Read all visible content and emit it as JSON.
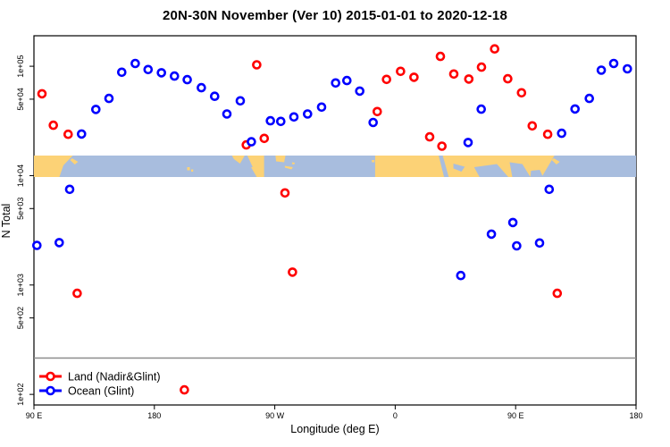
{
  "title": "20N-30N November (Ver 10)   2015-01-01 to 2020-12-18",
  "legend": {
    "items": [
      {
        "label": "Land (Nadir&Glint)",
        "color": "#ff0000"
      },
      {
        "label": "Ocean (Glint)",
        "color": "#0000ff"
      }
    ]
  },
  "map_band": {
    "ocean_color": "#a8bdde",
    "land_color": "#fcd276"
  },
  "chart_data": {
    "type": "scatter",
    "title": "20N-30N November (Ver 10)   2015-01-01 to 2020-12-18",
    "xlabel": "Longitude (deg E)",
    "ylabel": "N Total",
    "grid": false,
    "legend_position": "bottom-left",
    "x_axis": {
      "min": 90,
      "max": 540,
      "note": "longitude axis starts at 90E and wraps eastward around the globe (unwrapped degrees)",
      "ticks": [
        {
          "pos": 90,
          "label": "90 E"
        },
        {
          "pos": 180,
          "label": "180"
        },
        {
          "pos": 270,
          "label": "90 W"
        },
        {
          "pos": 360,
          "label": "0"
        },
        {
          "pos": 450,
          "label": "90 E"
        },
        {
          "pos": 540,
          "label": "180"
        }
      ]
    },
    "y_axis": {
      "scale": "log",
      "top_value": 190000,
      "bottom_value": 80,
      "ticks": [
        {
          "value": 100000,
          "label": "1e+05"
        },
        {
          "value": 50000,
          "label": "5e+04"
        },
        {
          "value": 10000,
          "label": "1e+04"
        },
        {
          "value": 5000,
          "label": "5e+03"
        },
        {
          "value": 1000,
          "label": "1e+03"
        },
        {
          "value": 500,
          "label": "5e+02"
        },
        {
          "value": 100,
          "label": "1e+02"
        }
      ]
    },
    "series": [
      {
        "name": "Land (Nadir&Glint)",
        "color": "#ff0000",
        "points": [
          [
            96,
            56000
          ],
          [
            104.5,
            28900
          ],
          [
            115.6,
            23900
          ],
          [
            122.3,
            840
          ],
          [
            202.4,
            110
          ],
          [
            248.7,
            19100
          ],
          [
            256.5,
            103000
          ],
          [
            262.1,
            21900
          ],
          [
            277.6,
            6950
          ],
          [
            283.2,
            1310
          ],
          [
            346.6,
            38500
          ],
          [
            353.5,
            75900
          ],
          [
            364,
            89800
          ],
          [
            374,
            79300
          ],
          [
            385.8,
            22600
          ],
          [
            393.8,
            123000
          ],
          [
            394.9,
            18600
          ],
          [
            403.8,
            84900
          ],
          [
            415,
            76400
          ],
          [
            424.5,
            98100
          ],
          [
            434.3,
            144000
          ],
          [
            444.1,
            76800
          ],
          [
            454.4,
            57200
          ],
          [
            462.4,
            28500
          ],
          [
            474,
            23900
          ],
          [
            481.1,
            840
          ]
        ]
      },
      {
        "name": "Ocean (Glint)",
        "color": "#0000ff",
        "points": [
          [
            92.2,
            2300
          ],
          [
            108.9,
            2440
          ],
          [
            116.7,
            7490
          ],
          [
            125.6,
            24000
          ],
          [
            136.3,
            40300
          ],
          [
            146.1,
            50800
          ],
          [
            155.6,
            88100
          ],
          [
            165.7,
            106000
          ],
          [
            175.3,
            93300
          ],
          [
            185.3,
            87100
          ],
          [
            195,
            81300
          ],
          [
            204.6,
            75400
          ],
          [
            215.1,
            63700
          ],
          [
            225.1,
            53100
          ],
          [
            234.2,
            36600
          ],
          [
            244.2,
            48300
          ],
          [
            252.5,
            20400
          ],
          [
            266.7,
            31700
          ],
          [
            274.5,
            31300
          ],
          [
            284.3,
            34400
          ],
          [
            294.5,
            36600
          ],
          [
            305,
            42300
          ],
          [
            315.5,
            70300
          ],
          [
            323.9,
            74000
          ],
          [
            333.5,
            59300
          ],
          [
            343.5,
            30600
          ],
          [
            409,
            1220
          ],
          [
            414.5,
            20100
          ],
          [
            424.3,
            40500
          ],
          [
            431.9,
            2920
          ],
          [
            447.9,
            3730
          ],
          [
            450.8,
            2280
          ],
          [
            467.9,
            2420
          ],
          [
            475.1,
            7490
          ],
          [
            484.4,
            24400
          ],
          [
            494.4,
            40700
          ],
          [
            505.1,
            50800
          ],
          [
            514,
            92000
          ],
          [
            523.3,
            106000
          ],
          [
            533.5,
            94700
          ]
        ]
      }
    ]
  }
}
